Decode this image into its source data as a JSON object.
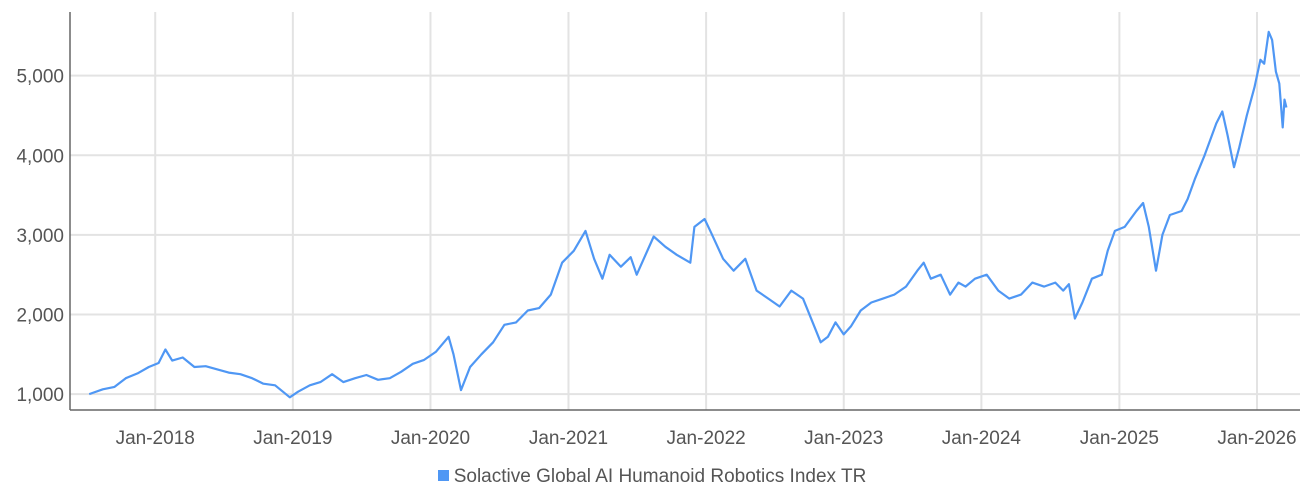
{
  "chart_data": {
    "type": "line",
    "title": "",
    "xlabel": "",
    "ylabel": "",
    "x_ticks": [
      "Jan-2018",
      "Jan-2019",
      "Jan-2020",
      "Jan-2021",
      "Jan-2022",
      "Jan-2023",
      "Jan-2024",
      "Jan-2025",
      "Jan-2026"
    ],
    "x_range": [
      "2017-05-20",
      "2026-04-25"
    ],
    "ylim": [
      800,
      5800
    ],
    "y_ticks": [
      1000,
      2000,
      3000,
      4000,
      5000
    ],
    "y_tick_labels": [
      "1,000",
      "2,000",
      "3,000",
      "4,000",
      "5,000"
    ],
    "grid": true,
    "legend_position": "bottom-center",
    "series": [
      {
        "name": "Solactive Global AI Humanoid Robotics Index TR",
        "color": "#4f97f4",
        "points": [
          [
            "2017-07-10",
            1000
          ],
          [
            "2017-08-15",
            1060
          ],
          [
            "2017-09-15",
            1090
          ],
          [
            "2017-10-15",
            1200
          ],
          [
            "2017-11-15",
            1260
          ],
          [
            "2017-12-15",
            1340
          ],
          [
            "2018-01-10",
            1390
          ],
          [
            "2018-01-28",
            1560
          ],
          [
            "2018-02-15",
            1420
          ],
          [
            "2018-03-15",
            1460
          ],
          [
            "2018-04-15",
            1340
          ],
          [
            "2018-05-15",
            1350
          ],
          [
            "2018-06-15",
            1310
          ],
          [
            "2018-07-15",
            1270
          ],
          [
            "2018-08-15",
            1250
          ],
          [
            "2018-09-15",
            1200
          ],
          [
            "2018-10-15",
            1130
          ],
          [
            "2018-11-15",
            1110
          ],
          [
            "2018-12-24",
            960
          ],
          [
            "2019-01-15",
            1030
          ],
          [
            "2019-02-15",
            1110
          ],
          [
            "2019-03-15",
            1150
          ],
          [
            "2019-04-15",
            1250
          ],
          [
            "2019-05-15",
            1150
          ],
          [
            "2019-06-15",
            1200
          ],
          [
            "2019-07-15",
            1240
          ],
          [
            "2019-08-15",
            1180
          ],
          [
            "2019-09-15",
            1200
          ],
          [
            "2019-10-15",
            1280
          ],
          [
            "2019-11-15",
            1380
          ],
          [
            "2019-12-15",
            1430
          ],
          [
            "2020-01-15",
            1530
          ],
          [
            "2020-02-18",
            1720
          ],
          [
            "2020-03-02",
            1500
          ],
          [
            "2020-03-22",
            1050
          ],
          [
            "2020-04-15",
            1340
          ],
          [
            "2020-05-15",
            1500
          ],
          [
            "2020-06-15",
            1650
          ],
          [
            "2020-07-15",
            1870
          ],
          [
            "2020-08-15",
            1900
          ],
          [
            "2020-09-15",
            2050
          ],
          [
            "2020-10-15",
            2080
          ],
          [
            "2020-11-15",
            2250
          ],
          [
            "2020-12-15",
            2650
          ],
          [
            "2021-01-15",
            2800
          ],
          [
            "2021-02-15",
            3050
          ],
          [
            "2021-03-10",
            2700
          ],
          [
            "2021-04-01",
            2450
          ],
          [
            "2021-04-20",
            2750
          ],
          [
            "2021-05-20",
            2600
          ],
          [
            "2021-06-15",
            2720
          ],
          [
            "2021-07-01",
            2500
          ],
          [
            "2021-08-15",
            2980
          ],
          [
            "2021-09-15",
            2850
          ],
          [
            "2021-10-15",
            2750
          ],
          [
            "2021-11-20",
            2650
          ],
          [
            "2021-12-01",
            3100
          ],
          [
            "2021-12-28",
            3200
          ],
          [
            "2022-01-15",
            3020
          ],
          [
            "2022-02-15",
            2700
          ],
          [
            "2022-03-15",
            2550
          ],
          [
            "2022-04-15",
            2700
          ],
          [
            "2022-05-15",
            2300
          ],
          [
            "2022-06-15",
            2200
          ],
          [
            "2022-07-15",
            2100
          ],
          [
            "2022-08-15",
            2300
          ],
          [
            "2022-09-15",
            2200
          ],
          [
            "2022-10-15",
            1850
          ],
          [
            "2022-11-01",
            1650
          ],
          [
            "2022-11-20",
            1720
          ],
          [
            "2022-12-10",
            1900
          ],
          [
            "2023-01-01",
            1750
          ],
          [
            "2023-01-20",
            1850
          ],
          [
            "2023-02-15",
            2050
          ],
          [
            "2023-03-15",
            2150
          ],
          [
            "2023-04-15",
            2200
          ],
          [
            "2023-05-15",
            2250
          ],
          [
            "2023-06-15",
            2350
          ],
          [
            "2023-07-15",
            2550
          ],
          [
            "2023-08-01",
            2650
          ],
          [
            "2023-08-20",
            2450
          ],
          [
            "2023-09-15",
            2500
          ],
          [
            "2023-10-10",
            2250
          ],
          [
            "2023-11-01",
            2400
          ],
          [
            "2023-11-20",
            2350
          ],
          [
            "2023-12-15",
            2450
          ],
          [
            "2024-01-15",
            2500
          ],
          [
            "2024-02-15",
            2300
          ],
          [
            "2024-03-15",
            2200
          ],
          [
            "2024-04-15",
            2250
          ],
          [
            "2024-05-15",
            2400
          ],
          [
            "2024-06-15",
            2350
          ],
          [
            "2024-07-15",
            2400
          ],
          [
            "2024-08-05",
            2300
          ],
          [
            "2024-08-20",
            2380
          ],
          [
            "2024-09-05",
            1950
          ],
          [
            "2024-09-25",
            2150
          ],
          [
            "2024-10-20",
            2450
          ],
          [
            "2024-11-15",
            2500
          ],
          [
            "2024-12-01",
            2800
          ],
          [
            "2024-12-20",
            3050
          ],
          [
            "2025-01-15",
            3100
          ],
          [
            "2025-02-15",
            3300
          ],
          [
            "2025-03-05",
            3400
          ],
          [
            "2025-03-20",
            3100
          ],
          [
            "2025-04-08",
            2550
          ],
          [
            "2025-04-25",
            3000
          ],
          [
            "2025-05-15",
            3250
          ],
          [
            "2025-06-15",
            3300
          ],
          [
            "2025-07-01",
            3450
          ],
          [
            "2025-07-20",
            3700
          ],
          [
            "2025-08-15",
            4000
          ],
          [
            "2025-09-15",
            4400
          ],
          [
            "2025-10-01",
            4550
          ],
          [
            "2025-10-15",
            4250
          ],
          [
            "2025-11-01",
            3850
          ],
          [
            "2025-11-15",
            4100
          ],
          [
            "2025-12-05",
            4500
          ],
          [
            "2025-12-25",
            4850
          ],
          [
            "2026-01-10",
            5200
          ],
          [
            "2026-01-20",
            5150
          ],
          [
            "2026-02-01",
            5550
          ],
          [
            "2026-02-10",
            5450
          ],
          [
            "2026-02-20",
            5050
          ],
          [
            "2026-03-01",
            4900
          ],
          [
            "2026-03-10",
            4350
          ],
          [
            "2026-03-15",
            4700
          ],
          [
            "2026-03-20",
            4600
          ]
        ]
      }
    ]
  }
}
